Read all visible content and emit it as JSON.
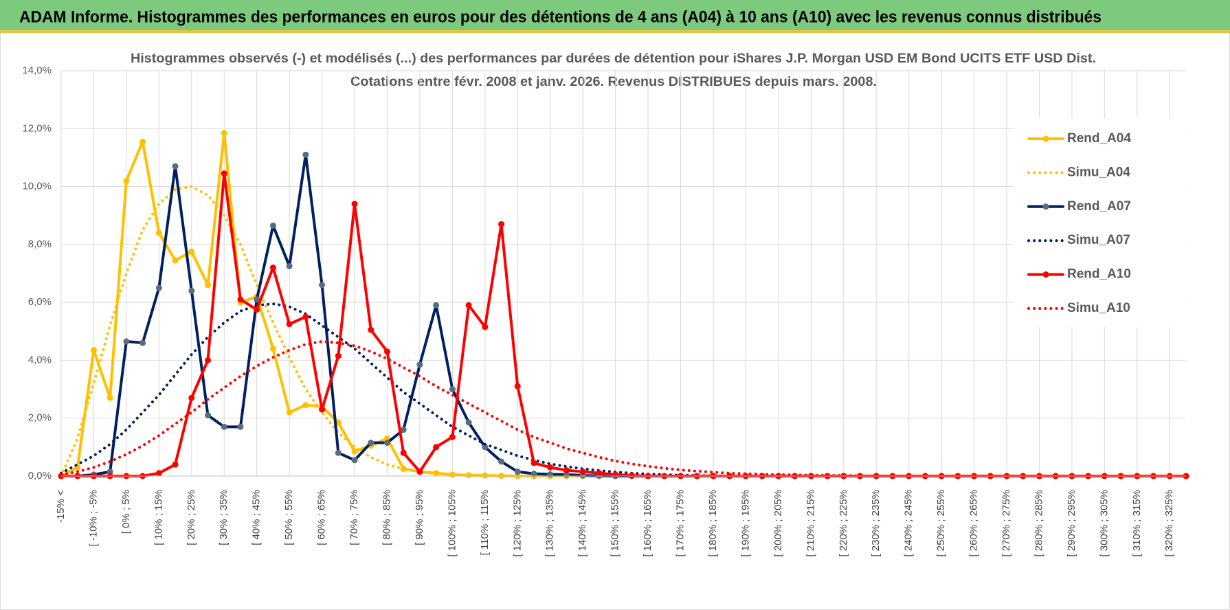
{
  "header": {
    "title": "ADAM Informe. Histogrammes des performances en euros pour des détentions de 4 ans (A04) à 10 ans (A10) avec les revenus connus distribués"
  },
  "chart_data": {
    "type": "line",
    "title": [
      "Histogrammes observés (-) et modélisés (...) des performances par durées de détention pour iShares J.P. Morgan USD EM Bond UCITS ETF USD Dist.",
      "Cotations entre févr. 2008 et janv. 2026. Revenus DISTRIBUES depuis mars. 2008."
    ],
    "categories": [
      "-15% <",
      null,
      "[ -10% ; -5%",
      null,
      "[ 0% ; 5%",
      null,
      "[ 10% ; 15%",
      null,
      "[ 20% ; 25%",
      null,
      "[ 30% ; 35%",
      null,
      "[ 40% ; 45%",
      null,
      "[ 50% ; 55%",
      null,
      "[ 60% ; 65%",
      null,
      "[ 70% ; 75%",
      null,
      "[ 80% ; 85%",
      null,
      "[ 90% ; 95%",
      null,
      "[ 100% ; 105%",
      null,
      "[ 110% ; 115%",
      null,
      "[ 120% ; 125%",
      null,
      "[ 130% ; 135%",
      null,
      "[ 140% ; 145%",
      null,
      "[ 150% ; 155%",
      null,
      "[ 160% ; 165%",
      null,
      "[ 170% ; 175%",
      null,
      "[ 180% ; 185%",
      null,
      "[ 190% ; 195%",
      null,
      "[ 200% ; 205%",
      null,
      "[ 210% ; 215%",
      null,
      "[ 220% ; 225%",
      null,
      "[ 230% ; 235%",
      null,
      "[ 240% ; 245%",
      null,
      "[ 250% ; 255%",
      null,
      "[ 260% ; 265%",
      null,
      "[ 270% ; 275%",
      null,
      "[ 280% ; 285%",
      null,
      "[ 290% ; 295%",
      null,
      "[ 300% ; 305%",
      null,
      "[ 310% ; 315%",
      null,
      "[ 320% ; 325%",
      null
    ],
    "series": [
      {
        "name": "Rend_A04",
        "color": "#FFC000",
        "style": "solid",
        "values": [
          0,
          0.3,
          4.35,
          2.7,
          10.2,
          11.55,
          8.4,
          7.45,
          7.75,
          6.6,
          11.85,
          6.0,
          6.2,
          4.4,
          2.2,
          2.45,
          2.4,
          1.85,
          0.85,
          1.05,
          1.3,
          0.25,
          0.15,
          0.1,
          0.05,
          0.03,
          0.02,
          0.01,
          0,
          0,
          0,
          0,
          0,
          0,
          0,
          0,
          0,
          0,
          0,
          0,
          0,
          0,
          0,
          0,
          0,
          0,
          0,
          0,
          0,
          0,
          0,
          0,
          0,
          0,
          0,
          0,
          0,
          0,
          0,
          0,
          0,
          0,
          0,
          0,
          0,
          0,
          0,
          0,
          0,
          0
        ]
      },
      {
        "name": "Simu_A04",
        "color": "#FFC000",
        "style": "dotted",
        "values": [
          0,
          1.3,
          3.2,
          5.2,
          7.0,
          8.5,
          9.4,
          9.9,
          10.0,
          9.7,
          9.0,
          8.0,
          6.6,
          5.3,
          4.1,
          3.0,
          2.2,
          1.5,
          1.0,
          0.65,
          0.4,
          0.25,
          0.15,
          0.08,
          0.05,
          0.02,
          0.01,
          0,
          0,
          0,
          0,
          0,
          0,
          0,
          0,
          0,
          0,
          0,
          0,
          0,
          0,
          0,
          0,
          0,
          0,
          0,
          0,
          0,
          0,
          0,
          0,
          0,
          0,
          0,
          0,
          0,
          0,
          0,
          0,
          0,
          0,
          0,
          0,
          0,
          0,
          0,
          0,
          0,
          0,
          0
        ]
      },
      {
        "name": "Rend_A07",
        "color": "#002060",
        "style": "solid",
        "values": [
          0,
          0,
          0.05,
          0.15,
          4.65,
          4.6,
          6.5,
          10.7,
          6.4,
          2.1,
          1.7,
          1.7,
          6.1,
          8.65,
          7.25,
          11.1,
          6.6,
          0.8,
          0.55,
          1.15,
          1.15,
          1.6,
          3.85,
          5.9,
          3.0,
          1.85,
          1.0,
          0.5,
          0.15,
          0.08,
          0.06,
          0.05,
          0.02,
          0.01,
          0,
          0,
          0,
          0,
          0,
          0,
          0,
          0,
          0,
          0,
          0,
          0,
          0,
          0,
          0,
          0,
          0,
          0,
          0,
          0,
          0,
          0,
          0,
          0,
          0,
          0,
          0,
          0,
          0,
          0,
          0,
          0,
          0,
          0,
          0,
          0
        ]
      },
      {
        "name": "Simu_A07",
        "color": "#002060",
        "style": "dotted",
        "values": [
          0.1,
          0.4,
          0.7,
          1.1,
          1.6,
          2.2,
          2.8,
          3.5,
          4.2,
          4.8,
          5.3,
          5.7,
          5.9,
          5.95,
          5.85,
          5.6,
          5.2,
          4.8,
          4.4,
          3.9,
          3.4,
          2.9,
          2.5,
          2.1,
          1.7,
          1.4,
          1.1,
          0.9,
          0.7,
          0.55,
          0.42,
          0.33,
          0.25,
          0.19,
          0.14,
          0.1,
          0.07,
          0.05,
          0.03,
          0.02,
          0.01,
          0,
          0,
          0,
          0,
          0,
          0,
          0,
          0,
          0,
          0,
          0,
          0,
          0,
          0,
          0,
          0,
          0,
          0,
          0,
          0,
          0,
          0,
          0,
          0,
          0,
          0,
          0,
          0,
          0
        ]
      },
      {
        "name": "Rend_A10",
        "color": "#FF0000",
        "style": "solid",
        "values": [
          0,
          0,
          0,
          0,
          0,
          0,
          0.1,
          0.4,
          2.7,
          4.0,
          10.45,
          6.1,
          5.75,
          7.2,
          5.25,
          5.5,
          2.3,
          4.15,
          9.4,
          5.05,
          4.3,
          0.8,
          0.15,
          1.0,
          1.35,
          5.9,
          5.15,
          8.7,
          3.1,
          0.45,
          0.3,
          0.2,
          0.15,
          0.1,
          0.05,
          0.02,
          0,
          0,
          0,
          0,
          0,
          0,
          0,
          0,
          0,
          0,
          0,
          0,
          0,
          0,
          0,
          0,
          0,
          0,
          0,
          0,
          0,
          0,
          0,
          0,
          0,
          0,
          0,
          0,
          0,
          0,
          0,
          0,
          0,
          0
        ]
      },
      {
        "name": "Simu_A10",
        "color": "#FF0000",
        "style": "dotted",
        "values": [
          0.05,
          0.15,
          0.3,
          0.5,
          0.75,
          1.05,
          1.4,
          1.8,
          2.2,
          2.65,
          3.05,
          3.45,
          3.8,
          4.1,
          4.35,
          4.55,
          4.65,
          4.6,
          4.5,
          4.3,
          4.05,
          3.75,
          3.45,
          3.1,
          2.8,
          2.5,
          2.2,
          1.9,
          1.6,
          1.35,
          1.15,
          0.95,
          0.8,
          0.65,
          0.52,
          0.42,
          0.34,
          0.27,
          0.21,
          0.17,
          0.13,
          0.1,
          0.08,
          0.06,
          0.05,
          0.04,
          0.03,
          0.02,
          0.02,
          0.01,
          0,
          0,
          0,
          0,
          0,
          0,
          0,
          0,
          0,
          0,
          0,
          0,
          0,
          0,
          0,
          0,
          0,
          0,
          0,
          0
        ]
      }
    ],
    "ylim": [
      0,
      14
    ],
    "yticks": [
      {
        "value": 0,
        "label": "0,0%"
      },
      {
        "value": 2,
        "label": "2,0%"
      },
      {
        "value": 4,
        "label": "4,0%"
      },
      {
        "value": 6,
        "label": "6,0%"
      },
      {
        "value": 8,
        "label": "8,0%"
      },
      {
        "value": 10,
        "label": "10,0%"
      },
      {
        "value": 12,
        "label": "12,0%"
      },
      {
        "value": 14,
        "label": "14,0%"
      }
    ],
    "grid": true,
    "legend": "right"
  }
}
